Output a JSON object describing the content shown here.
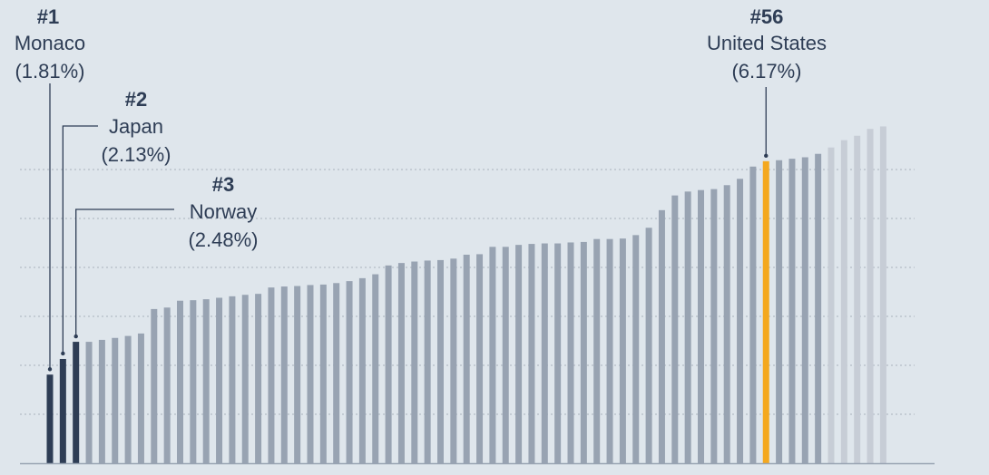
{
  "chart_data": {
    "type": "bar",
    "ylim": [
      0,
      7
    ],
    "values": [
      1.81,
      2.13,
      2.48,
      2.48,
      2.52,
      2.56,
      2.6,
      2.65,
      3.15,
      3.18,
      3.32,
      3.33,
      3.35,
      3.38,
      3.41,
      3.44,
      3.46,
      3.59,
      3.61,
      3.62,
      3.64,
      3.65,
      3.68,
      3.72,
      3.78,
      3.86,
      4.04,
      4.09,
      4.12,
      4.14,
      4.15,
      4.18,
      4.26,
      4.27,
      4.42,
      4.42,
      4.46,
      4.48,
      4.49,
      4.49,
      4.51,
      4.52,
      4.58,
      4.58,
      4.59,
      4.66,
      4.81,
      5.17,
      5.47,
      5.55,
      5.58,
      5.6,
      5.68,
      5.81,
      6.06,
      6.17,
      6.19,
      6.22,
      6.25,
      6.32,
      6.45,
      6.6,
      6.69,
      6.83,
      6.88
    ],
    "highlight": [
      {
        "index": 0,
        "rank": "#1",
        "name": "Monaco",
        "value_label": "(1.81%)"
      },
      {
        "index": 1,
        "rank": "#2",
        "name": "Japan",
        "value_label": "(2.13%)"
      },
      {
        "index": 2,
        "rank": "#3",
        "name": "Norway",
        "value_label": "(2.48%)"
      },
      {
        "index": 55,
        "rank": "#56",
        "name": "United States",
        "value_label": "(6.17%)"
      }
    ],
    "grid": true,
    "colors": {
      "background": "#dfe6ec",
      "top3": "#2e3d55",
      "default_bar": "#98a3b2",
      "faded_bar": "#c7cdd6",
      "highlight_bar": "#f4a81e",
      "grid": "#a8b1bd",
      "baseline": "#98a3b2",
      "text": "#2e3d55"
    }
  }
}
